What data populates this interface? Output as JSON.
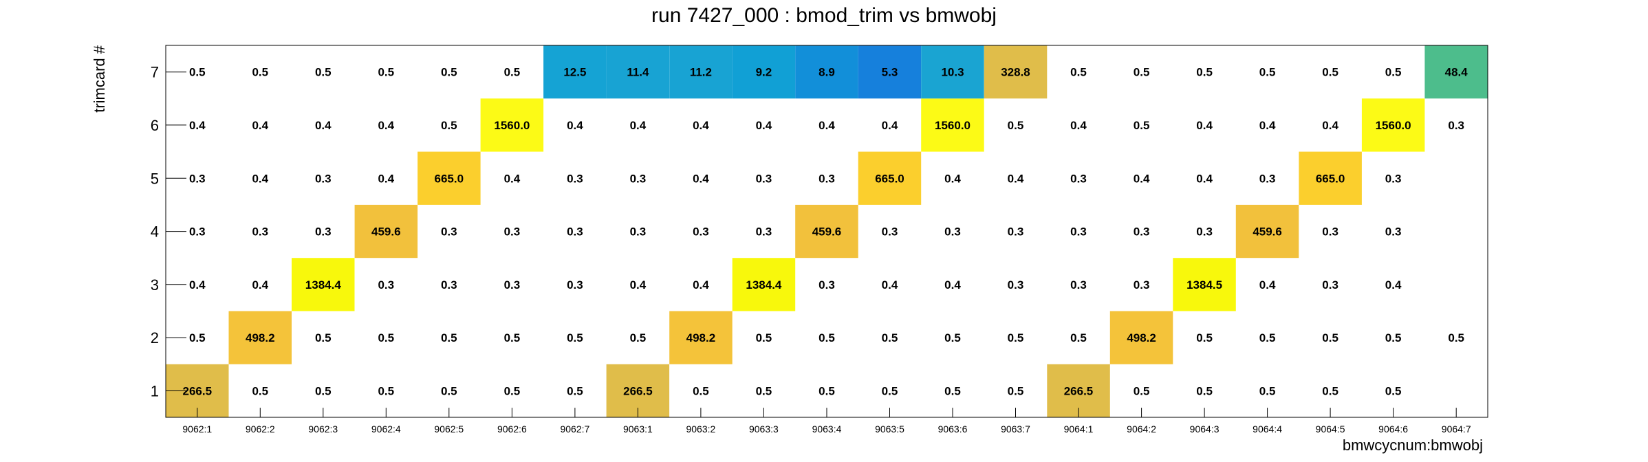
{
  "chart_data": {
    "type": "heatmap",
    "title": "run 7427_000 : bmod_trim vs bmwobj",
    "xlabel": "bmwcycnum:bmwobj",
    "ylabel": "trimcard #",
    "x_categories": [
      "9062:1",
      "9062:2",
      "9062:3",
      "9062:4",
      "9062:5",
      "9062:6",
      "9062:7",
      "9063:1",
      "9063:2",
      "9063:3",
      "9063:4",
      "9063:5",
      "9063:6",
      "9063:7",
      "9064:1",
      "9064:2",
      "9064:3",
      "9064:4",
      "9064:5",
      "9064:6",
      "9064:7"
    ],
    "y_categories": [
      "1",
      "2",
      "3",
      "4",
      "5",
      "6",
      "7"
    ],
    "values": {
      "7": [
        "0.5",
        "0.5",
        "0.5",
        "0.5",
        "0.5",
        "0.5",
        "12.5",
        "11.4",
        "11.2",
        "9.2",
        "8.9",
        "5.3",
        "10.3",
        "328.8",
        "0.5",
        "0.5",
        "0.5",
        "0.5",
        "0.5",
        "0.5",
        "48.4"
      ],
      "6": [
        "0.4",
        "0.4",
        "0.4",
        "0.4",
        "0.5",
        "1560.0",
        "0.4",
        "0.4",
        "0.4",
        "0.4",
        "0.4",
        "0.4",
        "1560.0",
        "0.5",
        "0.4",
        "0.5",
        "0.4",
        "0.4",
        "0.4",
        "1560.0",
        "0.3"
      ],
      "5": [
        "0.3",
        "0.4",
        "0.3",
        "0.4",
        "665.0",
        "0.4",
        "0.3",
        "0.3",
        "0.4",
        "0.3",
        "0.3",
        "665.0",
        "0.4",
        "0.4",
        "0.3",
        "0.4",
        "0.4",
        "0.3",
        "665.0",
        "0.3",
        null
      ],
      "4": [
        "0.3",
        "0.3",
        "0.3",
        "459.6",
        "0.3",
        "0.3",
        "0.3",
        "0.3",
        "0.3",
        "0.3",
        "459.6",
        "0.3",
        "0.3",
        "0.3",
        "0.3",
        "0.3",
        "0.3",
        "459.6",
        "0.3",
        "0.3",
        null
      ],
      "3": [
        "0.4",
        "0.4",
        "1384.4",
        "0.3",
        "0.3",
        "0.3",
        "0.3",
        "0.4",
        "0.4",
        "1384.4",
        "0.3",
        "0.4",
        "0.4",
        "0.3",
        "0.3",
        "0.3",
        "1384.5",
        "0.4",
        "0.3",
        "0.4",
        null
      ],
      "2": [
        "0.5",
        "498.2",
        "0.5",
        "0.5",
        "0.5",
        "0.5",
        "0.5",
        "0.5",
        "498.2",
        "0.5",
        "0.5",
        "0.5",
        "0.5",
        "0.5",
        "0.5",
        "498.2",
        "0.5",
        "0.5",
        "0.5",
        "0.5",
        "0.5"
      ],
      "1": [
        "266.5",
        "0.5",
        "0.5",
        "0.5",
        "0.5",
        "0.5",
        "0.5",
        "266.5",
        "0.5",
        "0.5",
        "0.5",
        "0.5",
        "0.5",
        "0.5",
        "266.5",
        "0.5",
        "0.5",
        "0.5",
        "0.5",
        "0.5",
        null
      ]
    },
    "colors": {
      "266.5": "#e0bd4a",
      "498.2": "#f4c33a",
      "1384.4": "#f8f80c",
      "1384.5": "#f8f80c",
      "459.6": "#f2c13c",
      "665.0": "#fbcf2d",
      "1560.0": "#fcfa16",
      "12.5": "#15a3d4",
      "11.4": "#18a3d3",
      "11.2": "#18a3d3",
      "9.2": "#11a0d5",
      "8.9": "#128fd9",
      "5.3": "#1680dc",
      "10.3": "#1aa4d2",
      "328.8": "#e0bd4a",
      "48.4": "#4dbd8c"
    },
    "grid": false,
    "legend": "none"
  }
}
